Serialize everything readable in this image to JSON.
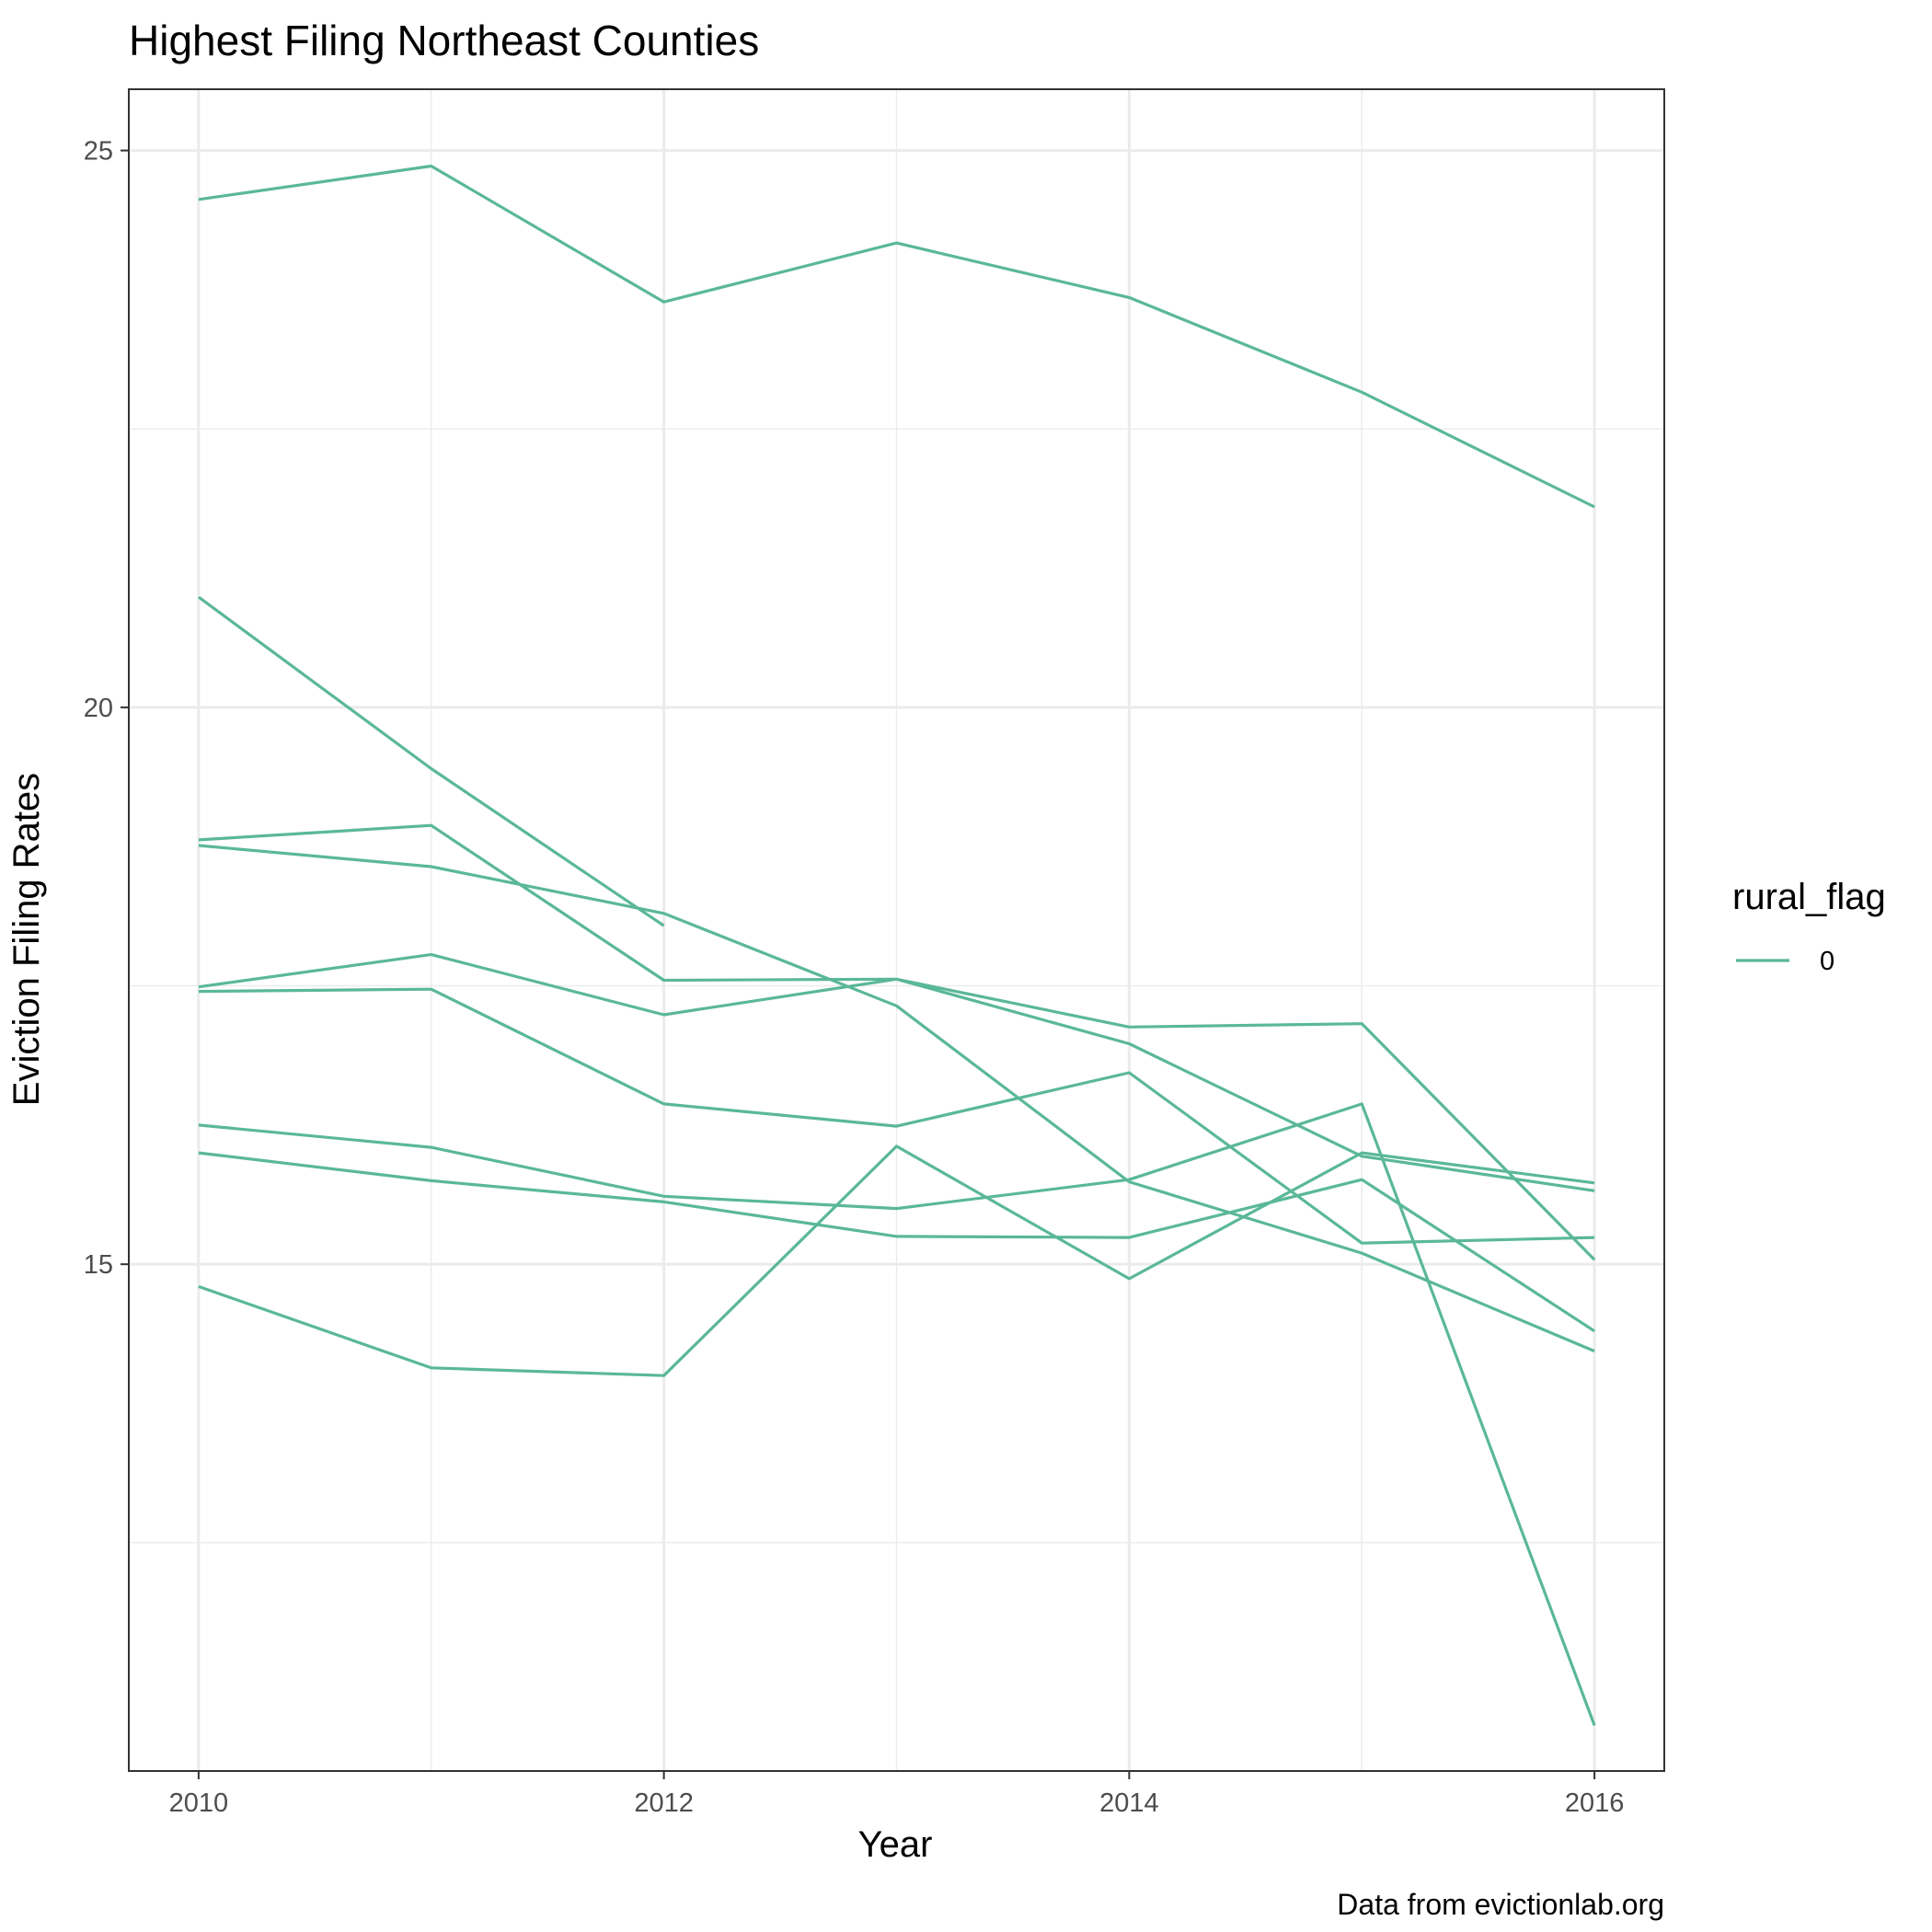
{
  "chart_data": {
    "type": "line",
    "title": "Highest Filing Northeast Counties",
    "xlabel": "Year",
    "ylabel": "Eviction Filing Rates",
    "caption": "Data from evictionlab.org",
    "xlim": [
      2009.7,
      2016.3
    ],
    "ylim": [
      10.45,
      25.55
    ],
    "x_ticks": [
      2010,
      2012,
      2014,
      2016
    ],
    "y_ticks": [
      15,
      20,
      25
    ],
    "x_minor": [
      2011,
      2013,
      2015
    ],
    "y_minor": [
      12.5,
      17.5,
      22.5
    ],
    "grid": true,
    "color": "#5ab897",
    "legend": {
      "title": "rural_flag",
      "entries": [
        "0"
      ],
      "position": "right"
    },
    "x": [
      2010,
      2011,
      2012,
      2013,
      2014,
      2015,
      2016
    ],
    "series": [
      {
        "values": [
          24.56,
          24.86,
          23.64,
          24.17,
          23.68,
          22.83,
          21.8
        ]
      },
      {
        "values": [
          20.99,
          19.45,
          18.04,
          null,
          null,
          null,
          null
        ]
      },
      {
        "values": [
          18.81,
          18.94,
          17.55,
          17.56,
          16.98,
          15.97,
          15.66
        ]
      },
      {
        "values": [
          18.76,
          18.57,
          18.15,
          17.32,
          15.74,
          15.1,
          14.22
        ]
      },
      {
        "values": [
          17.49,
          17.78,
          17.24,
          17.56,
          17.13,
          17.16,
          15.04
        ]
      },
      {
        "values": [
          17.45,
          17.47,
          16.44,
          16.24,
          16.72,
          15.19,
          15.24
        ]
      },
      {
        "values": [
          16.25,
          16.05,
          15.61,
          15.5,
          15.76,
          16.44,
          10.86
        ]
      },
      {
        "values": [
          16.0,
          15.75,
          15.56,
          15.25,
          15.24,
          15.76,
          14.4
        ]
      },
      {
        "values": [
          14.8,
          14.07,
          14.0,
          16.06,
          14.87,
          16.0,
          15.73
        ]
      }
    ]
  }
}
